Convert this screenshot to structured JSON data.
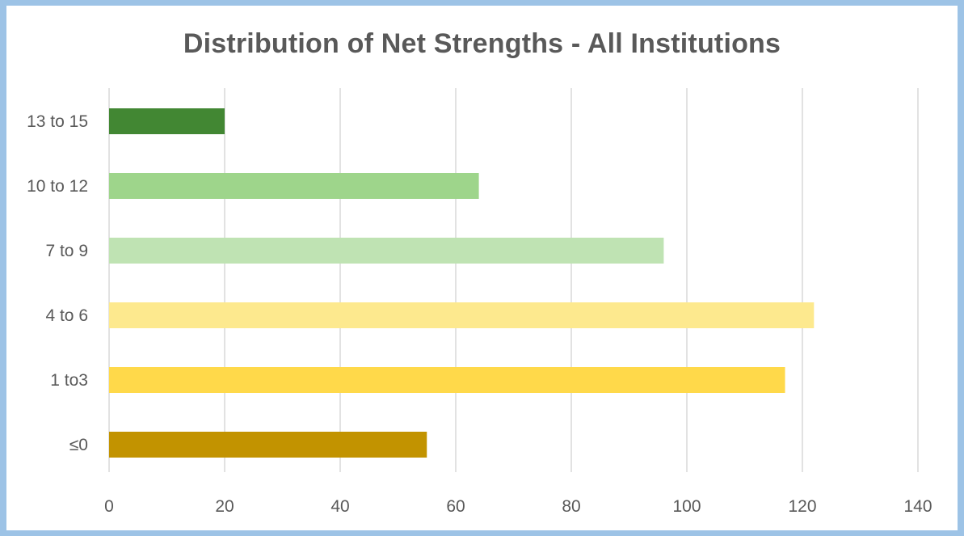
{
  "chart_data": {
    "type": "bar",
    "orientation": "horizontal",
    "title": "Distribution of Net Strengths - All Institutions",
    "xlabel": "",
    "ylabel": "",
    "categories": [
      "13 to 15",
      "10 to 12",
      "7 to 9",
      "4 to 6",
      "1 to3",
      "≤0"
    ],
    "values": [
      20,
      64,
      96,
      122,
      117,
      55
    ],
    "colors": [
      "#428733",
      "#9ed58b",
      "#bfe3b3",
      "#fde98e",
      "#ffd94a",
      "#c29300"
    ],
    "xlim": [
      0,
      140
    ],
    "xticks": [
      0,
      20,
      40,
      60,
      80,
      100,
      120,
      140
    ],
    "grid": "vertical",
    "legend": "none"
  },
  "colors": {
    "border": "#9dc3e6",
    "gridline": "#d9d9d9",
    "text": "#595959"
  }
}
